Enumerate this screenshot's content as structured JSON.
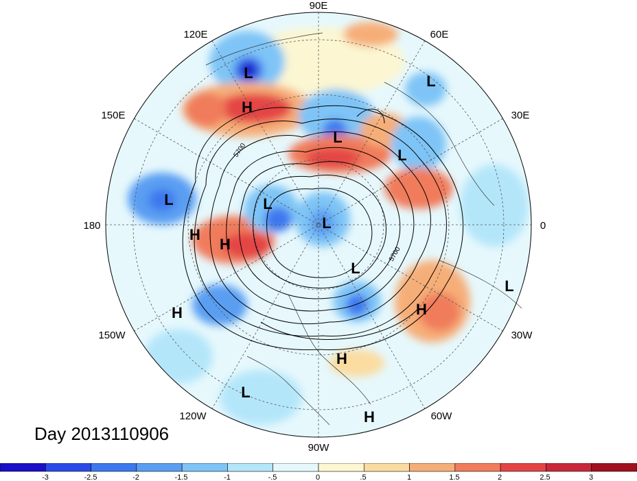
{
  "map": {
    "projection": "north-polar-stereographic",
    "longitude_labels": [
      "90E",
      "60E",
      "30E",
      "0",
      "30W",
      "60W",
      "90W",
      "120W",
      "150W",
      "180",
      "150E",
      "120E"
    ],
    "contour_labels": [
      "5700",
      "5700"
    ],
    "pressure_centers": [
      {
        "type": "L",
        "label": "L"
      },
      {
        "type": "H",
        "label": "H"
      },
      {
        "type": "L",
        "label": "L"
      },
      {
        "type": "L",
        "label": "L"
      },
      {
        "type": "L",
        "label": "L"
      },
      {
        "type": "L",
        "label": "L"
      },
      {
        "type": "L",
        "label": "L"
      },
      {
        "type": "H",
        "label": "H"
      },
      {
        "type": "H",
        "label": "H"
      },
      {
        "type": "L",
        "label": "L"
      },
      {
        "type": "L",
        "label": "L"
      },
      {
        "type": "L",
        "label": "L"
      },
      {
        "type": "H",
        "label": "H"
      },
      {
        "type": "H",
        "label": "H"
      },
      {
        "type": "H",
        "label": "H"
      },
      {
        "type": "L",
        "label": "L"
      },
      {
        "type": "H",
        "label": "H"
      }
    ]
  },
  "date_label": "Day 2013110906",
  "colorbar": {
    "tick_labels": [
      "-3",
      "-2.5",
      "-2",
      "-1.5",
      "-1",
      "-.5",
      "0",
      ".5",
      "1",
      "1.5",
      "2",
      "2.5",
      "3"
    ],
    "colors": [
      "#1a10c8",
      "#2a4ae8",
      "#3c78ee",
      "#5a9ef2",
      "#7ec4f6",
      "#b4e6fa",
      "#e6f8fc",
      "#fcf6d2",
      "#fbdca0",
      "#f6ae78",
      "#f07c5c",
      "#e44444",
      "#c8283a",
      "#a0101e"
    ]
  }
}
